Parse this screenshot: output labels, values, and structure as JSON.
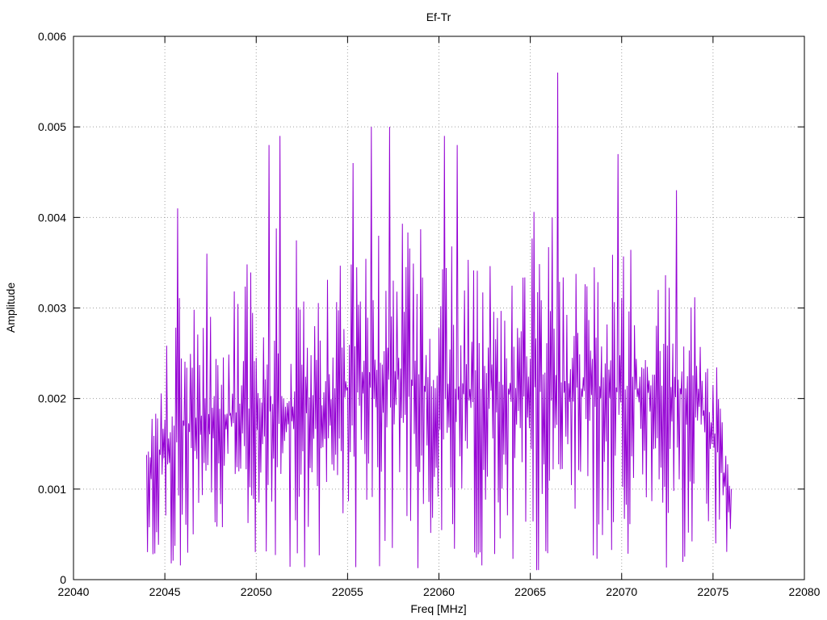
{
  "chart_data": {
    "type": "line",
    "title": "Ef-Tr",
    "xlabel": "Freq [MHz]",
    "ylabel": "Amplitude",
    "xlim": [
      22040,
      22080
    ],
    "ylim": [
      0,
      0.006
    ],
    "x_ticks": [
      22040,
      22045,
      22050,
      22055,
      22060,
      22065,
      22070,
      22075,
      22080
    ],
    "x_tick_labels": [
      "22040",
      "22045",
      "22050",
      "22055",
      "22060",
      "22065",
      "22070",
      "22075",
      "22080"
    ],
    "y_ticks": [
      0,
      0.001,
      0.002,
      0.003,
      0.004,
      0.005,
      0.006
    ],
    "y_tick_labels": [
      "0",
      "0.001",
      "0.002",
      "0.003",
      "0.004",
      "0.005",
      "0.006"
    ],
    "grid": true,
    "grid_style": "dotted",
    "legend": "none",
    "series": [
      {
        "color": "#9400d3",
        "x_range": [
          22044.0,
          22076.0
        ],
        "x_step": 0.05,
        "envelope": {
          "x": [
            22044.0,
            22046.0,
            22048.0,
            22050.0,
            22052.0,
            22054.0,
            22056.0,
            22058.0,
            22060.0,
            22062.0,
            22064.0,
            22066.0,
            22068.0,
            22070.0,
            22072.0,
            22074.0,
            22075.0,
            22076.0
          ],
          "median": [
            0.0012,
            0.0017,
            0.0018,
            0.0019,
            0.0019,
            0.0019,
            0.0023,
            0.0022,
            0.0021,
            0.0021,
            0.0021,
            0.0022,
            0.0021,
            0.0021,
            0.0021,
            0.0021,
            0.0016,
            0.0009
          ],
          "max": [
            0.0022,
            0.0041,
            0.0036,
            0.0048,
            0.0049,
            0.0042,
            0.005,
            0.005,
            0.0049,
            0.0045,
            0.0043,
            0.0056,
            0.0045,
            0.0047,
            0.0043,
            0.004,
            0.0033,
            0.0016
          ],
          "min": [
            0.0003,
            0.0001,
            0.0001,
            0.0001,
            0.0001,
            0.0002,
            0.0001,
            0.0001,
            0.0001,
            0.0001,
            0.0001,
            0.0001,
            0.0001,
            0.0001,
            0.0001,
            0.0002,
            0.0003,
            0.0002
          ]
        },
        "peaks": [
          {
            "x": 22045.7,
            "y": 0.0041
          },
          {
            "x": 22047.3,
            "y": 0.0036
          },
          {
            "x": 22050.7,
            "y": 0.0048
          },
          {
            "x": 22051.3,
            "y": 0.0049
          },
          {
            "x": 22055.3,
            "y": 0.0046
          },
          {
            "x": 22056.3,
            "y": 0.005
          },
          {
            "x": 22057.3,
            "y": 0.005
          },
          {
            "x": 22060.3,
            "y": 0.0049
          },
          {
            "x": 22061.0,
            "y": 0.0048
          },
          {
            "x": 22066.5,
            "y": 0.0056
          },
          {
            "x": 22069.8,
            "y": 0.0047
          },
          {
            "x": 22073.0,
            "y": 0.0043
          }
        ]
      }
    ]
  }
}
